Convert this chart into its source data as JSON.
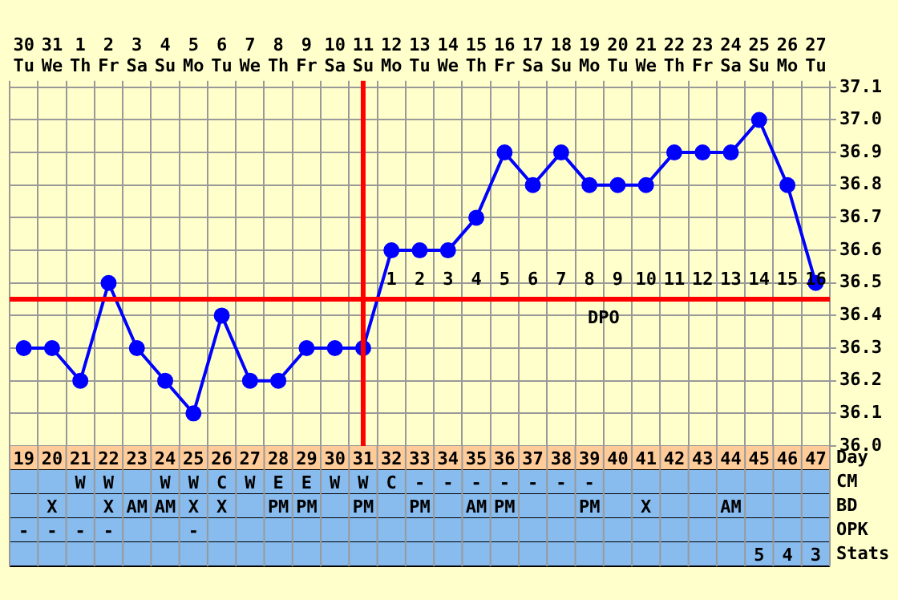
{
  "chart_data": {
    "type": "line",
    "categories": [
      "30 Tu",
      "31 We",
      "1 Th",
      "2 Fr",
      "3 Sa",
      "4 Su",
      "5 Mo",
      "6 Tu",
      "7 We",
      "8 Th",
      "9 Fr",
      "10 Sa",
      "11 Su",
      "12 Mo",
      "13 Tu",
      "14 We",
      "15 Th",
      "16 Fr",
      "17 Sa",
      "18 Su",
      "19 Mo",
      "20 Tu",
      "21 We",
      "22 Th",
      "23 Fr",
      "24 Sa",
      "25 Su",
      "26 Mo",
      "27 Tu"
    ],
    "series": [
      {
        "color": "#0000ff",
        "values": [
          36.3,
          36.3,
          36.2,
          36.5,
          36.3,
          36.2,
          36.1,
          36.4,
          36.2,
          36.2,
          36.3,
          36.3,
          36.3,
          36.6,
          36.6,
          36.6,
          36.7,
          36.9,
          36.8,
          36.9,
          36.8,
          36.8,
          36.8,
          36.9,
          36.9,
          36.9,
          37.0,
          36.8,
          36.5
        ]
      }
    ],
    "ylim": [
      36.0,
      37.1
    ],
    "yticks": [
      {
        "value": 36.0,
        "label": "36.0"
      },
      36.1,
      36.2,
      36.3,
      36.4,
      36.5,
      36.6,
      36.7,
      36.8,
      36.9,
      {
        "value": 37.0,
        "label": "37.0"
      },
      37.1
    ],
    "grid": true,
    "legend": false,
    "marker": "circle",
    "line_style": "solid",
    "ref_lines": [
      {
        "axis": "y",
        "value": 36.45,
        "color": "#ff0000"
      },
      {
        "axis": "x",
        "value": "11 Su",
        "color": "#ff0000"
      }
    ],
    "annotations": [
      "1 2 3 4 5 6 7 8 9 10 11 12 13 14 15 16",
      "DPO",
      "Day",
      "19 20 21 22 23 24 25 26 27 28 29 30 31 32 33 34 35 36 37 38 39 40 41 42 43 44 45 46 47",
      "CM",
      "  W W  W W C W E E W W C - - - - - - -",
      "BD",
      " X  X AM AM X X  PM PM  PM  PM  AM PM   PM  X   AM",
      "OPK",
      "- - - -   -",
      "Stats",
      "                          5 4 3"
    ]
  }
}
